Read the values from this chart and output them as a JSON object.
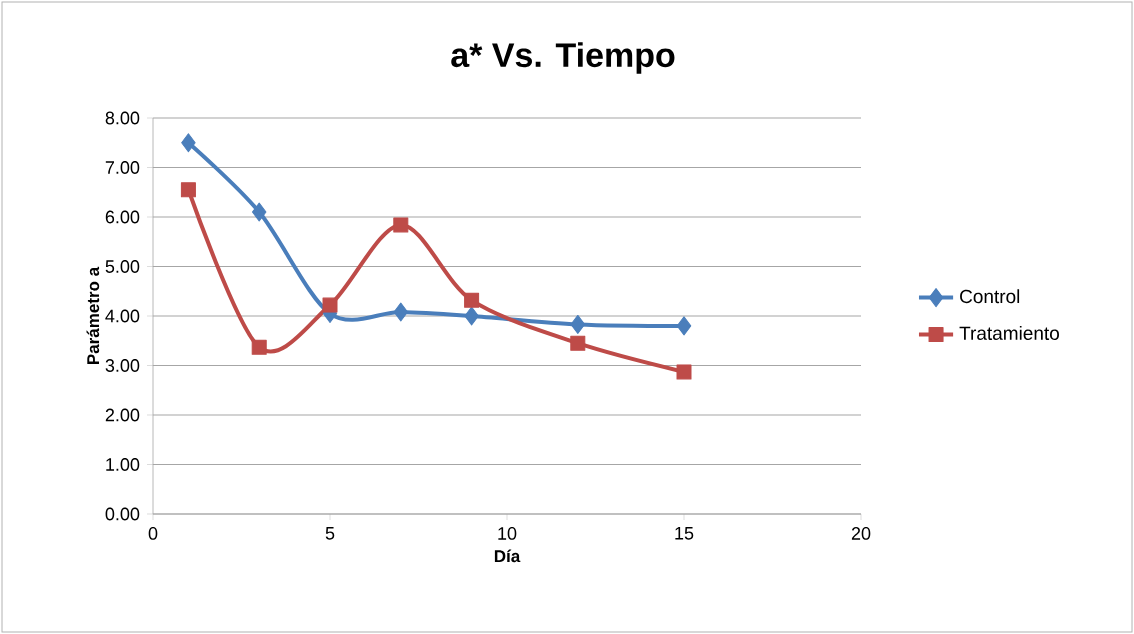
{
  "chart_data": {
    "type": "line",
    "title": "a* Vs. Tiempo",
    "xlabel": "Día",
    "ylabel": "Parámetro a",
    "xlim": [
      0,
      20
    ],
    "xticks": [
      0,
      5,
      10,
      15,
      20
    ],
    "ylim": [
      0,
      8
    ],
    "yticks": [
      {
        "value": 0,
        "label": "0.00"
      },
      {
        "value": 1,
        "label": "1.00"
      },
      {
        "value": 2,
        "label": "2.00"
      },
      {
        "value": 3,
        "label": "3.00"
      },
      {
        "value": 4,
        "label": "4.00"
      },
      {
        "value": 5,
        "label": "5.00"
      },
      {
        "value": 6,
        "label": "6.00"
      },
      {
        "value": 7,
        "label": "7.00"
      },
      {
        "value": 8,
        "label": "8.00"
      }
    ],
    "x": [
      1,
      3,
      5,
      7,
      9,
      12,
      15
    ],
    "series": [
      {
        "name": "Control",
        "color": "#4a7ebb",
        "marker": "diamond",
        "values": [
          7.5,
          6.1,
          4.05,
          4.08,
          4.0,
          3.83,
          3.8
        ]
      },
      {
        "name": "Tratamiento",
        "color": "#be4b48",
        "marker": "square",
        "values": [
          6.55,
          3.37,
          4.22,
          5.84,
          4.32,
          3.45,
          2.87
        ]
      }
    ],
    "grid": "y",
    "legend": "right"
  }
}
